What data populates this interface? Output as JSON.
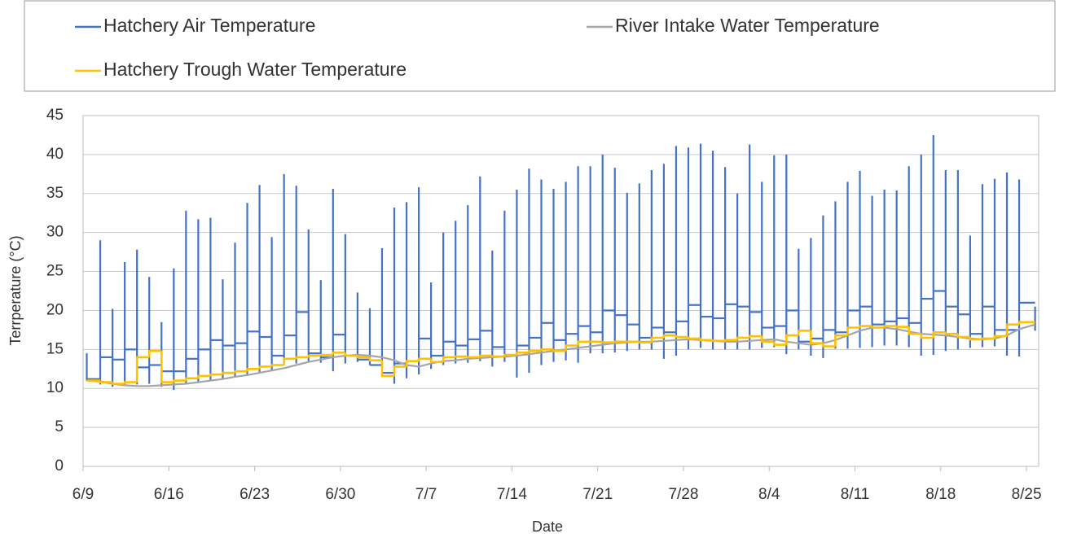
{
  "chart_data": {
    "type": "line",
    "x_label": "Date",
    "y_label": "Terrperature (°C)",
    "xlim": [
      0,
      77.7
    ],
    "xticks": [
      {
        "value": 0,
        "label": "6/9"
      },
      {
        "value": 7,
        "label": "6/16"
      },
      {
        "value": 14,
        "label": "6/23"
      },
      {
        "value": 21,
        "label": "6/30"
      },
      {
        "value": 28,
        "label": "7/7"
      },
      {
        "value": 35,
        "label": "7/14"
      },
      {
        "value": 42,
        "label": "7/21"
      },
      {
        "value": 49,
        "label": "7/28"
      },
      {
        "value": 56,
        "label": "8/4"
      },
      {
        "value": 63,
        "label": "8/11"
      },
      {
        "value": 70,
        "label": "8/18"
      },
      {
        "value": 77,
        "label": "8/25"
      }
    ],
    "ylim": [
      0,
      45
    ],
    "yticks": [
      0,
      5,
      10,
      15,
      20,
      25,
      30,
      35,
      40,
      45
    ],
    "grid": true,
    "legend": "top",
    "x": [
      0.3,
      1.4,
      2.4,
      3.4,
      4.4,
      5.4,
      6.4,
      7.4,
      8.4,
      9.4,
      10.4,
      11.4,
      12.4,
      13.4,
      14.4,
      15.4,
      16.4,
      17.4,
      18.4,
      19.4,
      20.4,
      21.4,
      22.4,
      23.4,
      24.4,
      25.4,
      26.4,
      27.4,
      28.4,
      29.4,
      30.4,
      31.4,
      32.4,
      33.4,
      34.4,
      35.4,
      36.4,
      37.4,
      38.4,
      39.4,
      40.4,
      41.4,
      42.4,
      43.4,
      44.4,
      45.4,
      46.4,
      47.4,
      48.4,
      49.4,
      50.4,
      51.4,
      52.4,
      53.4,
      54.4,
      55.4,
      56.4,
      57.4,
      58.4,
      59.4,
      60.4,
      61.4,
      62.4,
      63.4,
      64.4,
      65.4,
      66.4,
      67.4,
      68.4,
      69.4,
      70.4,
      71.4,
      72.4,
      73.4,
      74.4,
      75.4,
      76.4,
      77.7
    ],
    "series": [
      {
        "name": "Hatchery Air Temperature",
        "color": "#4472c4",
        "style": "range-step",
        "high": [
          14.5,
          29,
          20.2,
          26.2,
          27.8,
          24.3,
          18.5,
          25.4,
          32.8,
          31.7,
          31.9,
          24,
          28.7,
          33.8,
          36.1,
          29.4,
          37.5,
          36,
          30.4,
          23.9,
          35.6,
          29.8,
          22.3,
          20.3,
          28,
          33.2,
          33.9,
          35.8,
          23.6,
          30,
          31.5,
          33.5,
          37.2,
          27.7,
          32.8,
          35.5,
          38.2,
          36.8,
          35.6,
          36.5,
          38.5,
          38.5,
          40,
          38.3,
          35.1,
          36.3,
          38,
          38.8,
          41.1,
          40.9,
          41.4,
          40.5,
          38.4,
          35,
          41.3,
          36.5,
          39.9,
          40,
          27.9,
          29.3,
          32.2,
          34,
          36.5,
          37.9,
          34.7,
          35.5,
          35.4,
          38.5,
          40,
          42.5,
          38,
          38,
          29.6,
          36.2,
          36.9,
          37.7,
          36.8,
          20.5
        ],
        "low": [
          11,
          10.5,
          10.2,
          10.3,
          10.5,
          10.6,
          10.2,
          9.8,
          10.6,
          10.8,
          11,
          11.2,
          11.5,
          11.8,
          12,
          12.2,
          13,
          13.2,
          13.3,
          13.3,
          12.2,
          13.2,
          13.4,
          13,
          12.8,
          10.6,
          11.3,
          11.8,
          12.5,
          13,
          13.2,
          13.3,
          13.5,
          12.8,
          13.4,
          11.4,
          12,
          13,
          13.4,
          13.6,
          13.3,
          14.5,
          14.5,
          14.6,
          14.8,
          15,
          15,
          13.8,
          14.2,
          15,
          15.2,
          15,
          15,
          15,
          15,
          15.2,
          15.3,
          14.4,
          15,
          14.2,
          13.9,
          15.1,
          15.1,
          15.2,
          15.3,
          15.5,
          15.5,
          15.3,
          14.2,
          14.3,
          14.8,
          15,
          15.2,
          15.3,
          15.4,
          14.2,
          14.1,
          17.4
        ],
        "values": [
          11.2,
          14,
          13.7,
          15,
          12.7,
          13,
          12.2,
          12.2,
          13.8,
          15,
          16.2,
          15.5,
          15.8,
          17.3,
          16.6,
          14.2,
          16.8,
          19.8,
          14.5,
          14,
          16.9,
          14.2,
          13.7,
          13,
          12,
          13.2,
          13.5,
          16.4,
          14.2,
          16,
          15.5,
          16.3,
          17.4,
          15.3,
          14.3,
          15.5,
          16.5,
          18.4,
          16.2,
          17,
          18,
          17.2,
          20,
          19.4,
          18.2,
          16.5,
          17.8,
          17.2,
          18.6,
          20.7,
          19.2,
          19,
          20.8,
          20.5,
          19.8,
          17.8,
          18,
          20,
          16,
          16.4,
          17.5,
          17.2,
          20,
          20.5,
          18.2,
          18.6,
          19,
          18.4,
          21.5,
          22.5,
          20.5,
          19.5,
          17,
          20.5,
          17.5,
          17.5,
          21,
          17.4
        ]
      },
      {
        "name": "River Intake Water Temperature",
        "color": "#a5a5a5",
        "style": "line",
        "values": [
          11,
          10.9,
          10.6,
          10.4,
          10.3,
          10.3,
          10.4,
          10.5,
          10.6,
          10.8,
          11,
          11.2,
          11.5,
          11.7,
          12,
          12.3,
          12.6,
          13,
          13.4,
          13.7,
          14,
          14.2,
          14.3,
          14.2,
          14,
          13.6,
          13,
          12.8,
          13.2,
          13.5,
          13.6,
          13.8,
          13.9,
          14,
          14.1,
          14.2,
          14.4,
          14.6,
          14.8,
          15,
          15.2,
          15.4,
          15.6,
          15.8,
          15.9,
          16,
          16,
          16.1,
          16.2,
          16.3,
          16.2,
          16.1,
          16,
          16,
          16.1,
          16.2,
          16.3,
          16,
          15.8,
          15.6,
          15.8,
          16.2,
          16.8,
          17.4,
          17.8,
          17.8,
          17.6,
          17.3,
          17,
          16.9,
          16.8,
          16.6,
          16.4,
          16.3,
          16.4,
          16.8,
          17.6,
          18.2
        ]
      },
      {
        "name": "Hatchery Trough Water Temperature",
        "color": "#ffc000",
        "style": "step",
        "values": [
          11,
          10.8,
          10.6,
          10.8,
          14,
          14.8,
          10.8,
          11,
          11.3,
          11.6,
          11.8,
          12,
          12.2,
          12.5,
          12.8,
          13,
          13.8,
          14,
          14.2,
          14.3,
          14.6,
          14.2,
          14,
          13.6,
          11.6,
          12.8,
          13.5,
          13.8,
          13.4,
          14,
          14.1,
          14,
          14.2,
          14.1,
          14.3,
          14.6,
          14.8,
          15,
          14.8,
          15.5,
          16,
          16,
          15.9,
          16,
          16,
          15.9,
          16.5,
          16.8,
          16.6,
          16.4,
          16.2,
          16.1,
          16.2,
          16.5,
          16.7,
          16,
          15.6,
          16.8,
          17.4,
          15.8,
          15.4,
          16.8,
          17.8,
          18,
          17.8,
          18,
          17.9,
          17,
          16.5,
          17.2,
          17,
          16.6,
          16.3,
          16.4,
          16.7,
          18.2,
          18.5,
          18.5
        ]
      }
    ]
  }
}
